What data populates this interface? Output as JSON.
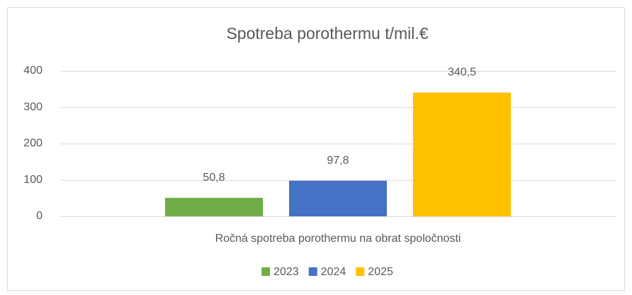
{
  "chart_data": {
    "type": "bar",
    "title": "Spotreba porothermu t/mil.€",
    "categories": [
      "Ročná spotreba porothermu na obrat spoločnosti"
    ],
    "series": [
      {
        "name": "2023",
        "color": "#70ad47",
        "values": [
          50.8
        ],
        "value_labels": [
          "50,8"
        ]
      },
      {
        "name": "2024",
        "color": "#4472c4",
        "values": [
          97.8
        ],
        "value_labels": [
          "97,8"
        ]
      },
      {
        "name": "2025",
        "color": "#ffc000",
        "values": [
          340.5
        ],
        "value_labels": [
          "340,5"
        ]
      }
    ],
    "ylim": [
      0,
      400
    ],
    "yticks": [
      0,
      100,
      200,
      300,
      400
    ],
    "grid": true,
    "legend": "bottom"
  }
}
